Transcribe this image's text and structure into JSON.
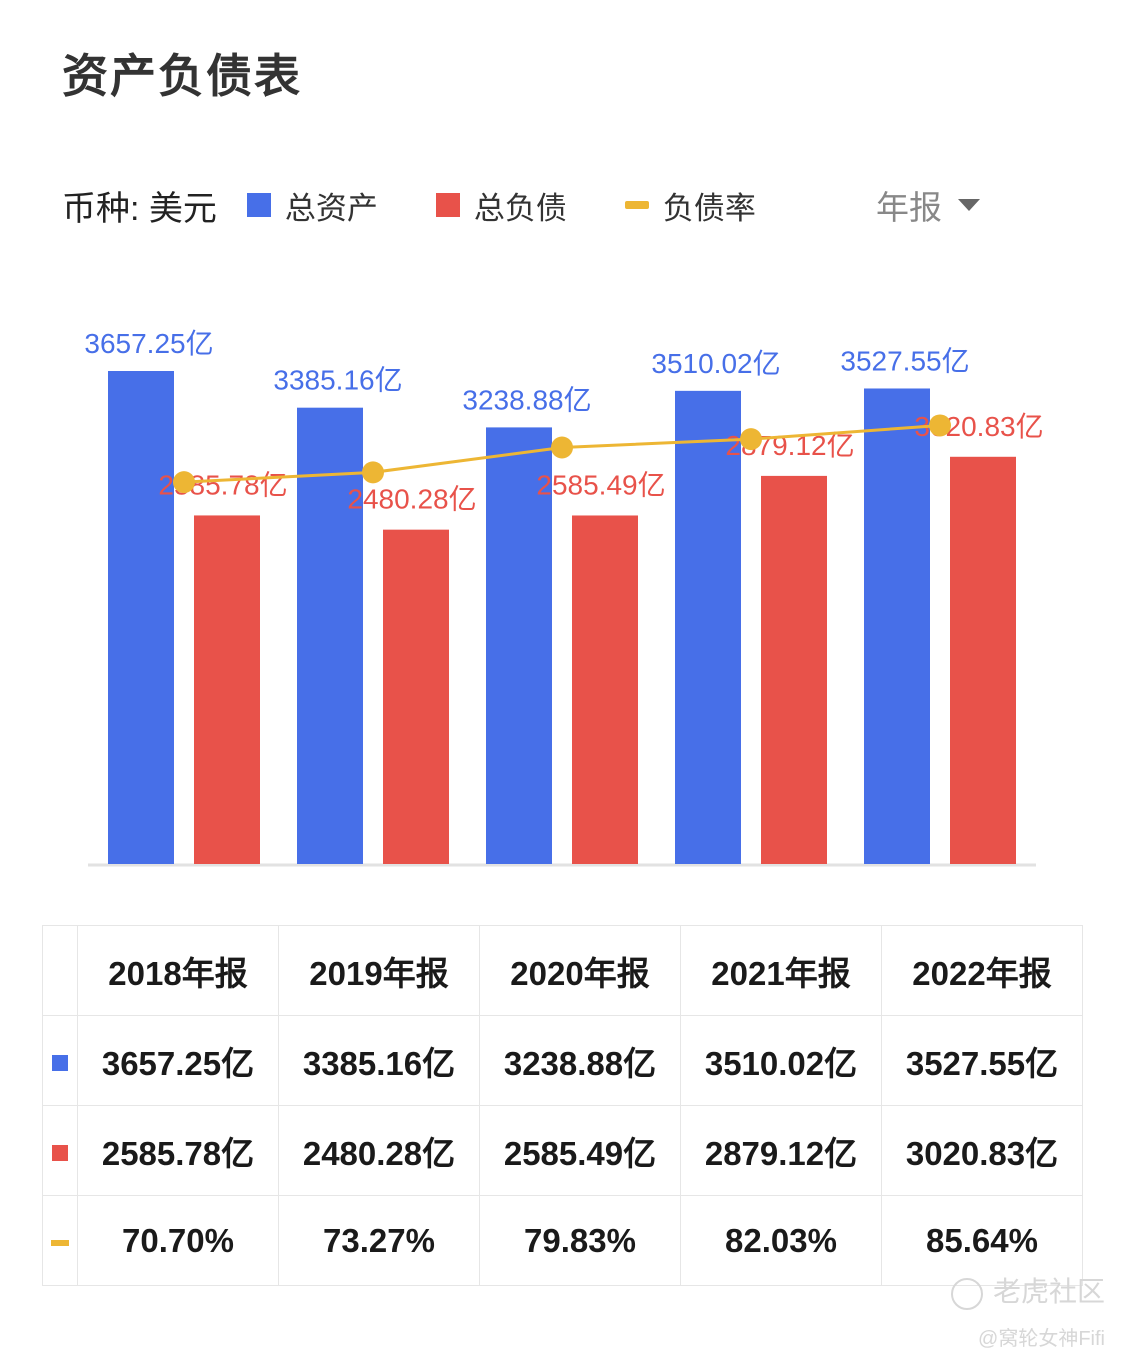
{
  "header": {
    "title": "资产负债表"
  },
  "legend": {
    "currency": "币种: 美元",
    "items": [
      {
        "label": "总资产",
        "color": "#476FE8",
        "shape": "square"
      },
      {
        "label": "总负债",
        "color": "#E8524A",
        "shape": "square"
      },
      {
        "label": "负债率",
        "color": "#EDB634",
        "shape": "line"
      }
    ],
    "period_select": "年报"
  },
  "chart_data": {
    "type": "bar",
    "categories": [
      "2018年报",
      "2019年报",
      "2020年报",
      "2021年报",
      "2022年报"
    ],
    "series": [
      {
        "name": "总资产",
        "type": "bar",
        "color": "#476FE8",
        "values": [
          3657.25,
          3385.16,
          3238.88,
          3510.02,
          3527.55
        ],
        "labels": [
          "3657.25亿",
          "3385.16亿",
          "3238.88亿",
          "3510.02亿",
          "3527.55亿"
        ]
      },
      {
        "name": "总负债",
        "type": "bar",
        "color": "#E8524A",
        "values": [
          2585.78,
          2480.28,
          2585.49,
          2879.12,
          3020.83
        ],
        "labels": [
          "2585.78亿",
          "2480.28亿",
          "2585.49亿",
          "2879.12亿",
          "3020.83亿"
        ]
      },
      {
        "name": "负债率",
        "type": "line",
        "color": "#EDB634",
        "values": [
          70.7,
          73.27,
          79.83,
          82.03,
          85.64
        ]
      }
    ],
    "ylim": [
      0,
      3657.25
    ],
    "ylim_ratio": [
      -30,
      100
    ],
    "grid": false,
    "legend_position": "top"
  },
  "table": {
    "header": [
      "2018年报",
      "2019年报",
      "2020年报",
      "2021年报",
      "2022年报"
    ],
    "rows": [
      {
        "marker_color": "#476FE8",
        "marker_shape": "square",
        "values": [
          "3657.25亿",
          "3385.16亿",
          "3238.88亿",
          "3510.02亿",
          "3527.55亿"
        ]
      },
      {
        "marker_color": "#E8524A",
        "marker_shape": "square",
        "values": [
          "2585.78亿",
          "2480.28亿",
          "2585.49亿",
          "2879.12亿",
          "3020.83亿"
        ]
      },
      {
        "marker_color": "#EDB634",
        "marker_shape": "line",
        "values": [
          "70.70%",
          "73.27%",
          "79.83%",
          "82.03%",
          "85.64%"
        ]
      }
    ]
  },
  "watermark": {
    "brand": "老虎社区",
    "author": "@窝轮女神Fifi"
  }
}
